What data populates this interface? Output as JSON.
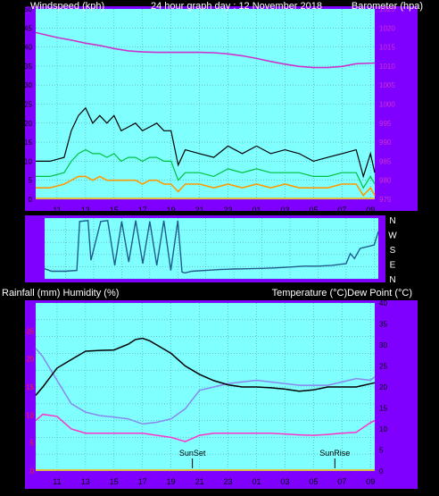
{
  "colors": {
    "plot_bg": "#80FFFF",
    "panel_bg": "#8000FF",
    "page_bg": "#000000",
    "header_text": "#FFFFFF",
    "label_dark": "#000000",
    "grid": "#5A9FA8",
    "wind_gust": "#000000",
    "wind_avg": "#00C040",
    "wind_speed": "#FF9900",
    "barometer": "#CC33CC",
    "direction": "#1F5C8C",
    "temperature": "#000000",
    "dew_point": "#FF33CC",
    "humidity": "#8888EE",
    "rain_axis": "#FF2020",
    "baseline": "#FFB000"
  },
  "chart_data": [
    {
      "id": "wind",
      "type": "line",
      "title": "24 hour graph day : 12 November 2018",
      "ylabel_left": "Windspeed (kph)",
      "ylabel_right": "Barometer (hpa)",
      "x_ticks": [
        "11",
        "13",
        "15",
        "17",
        "19",
        "21",
        "23",
        "01",
        "03",
        "05",
        "07",
        "09"
      ],
      "left_ticks": [
        "50",
        "45",
        "40",
        "35",
        "30",
        "25",
        "20",
        "15",
        "10",
        "5",
        "0"
      ],
      "right_ticks": [
        "1025",
        "1020",
        "1015",
        "1010",
        "1005",
        "1000",
        "995",
        "990",
        "985",
        "980",
        "975"
      ],
      "ylim_left": [
        0,
        50
      ],
      "ylim_right": [
        975,
        1025
      ],
      "x_range_hours": [
        9.5,
        33.3
      ],
      "series": [
        {
          "role": "barometer",
          "axis": "right",
          "x": [
            9.5,
            11,
            12,
            13,
            14,
            15,
            16,
            17,
            18,
            19,
            20,
            21,
            22,
            23,
            24,
            25,
            26,
            27,
            28,
            29,
            30,
            31,
            32,
            33.3
          ],
          "values": [
            1018.8,
            1017.5,
            1016.8,
            1016,
            1015.4,
            1014.6,
            1014,
            1013.7,
            1013.6,
            1013.6,
            1013.6,
            1013.6,
            1013.5,
            1013.2,
            1012.7,
            1012,
            1011.2,
            1010.5,
            1009.9,
            1009.6,
            1009.6,
            1009.9,
            1010.6,
            1010.8
          ]
        },
        {
          "role": "gust",
          "axis": "left",
          "x": [
            9.5,
            10.5,
            11.5,
            12,
            12.5,
            13,
            13.5,
            14,
            14.5,
            15,
            15.5,
            16,
            16.5,
            17,
            17.5,
            18,
            18.5,
            19,
            19.5,
            20,
            21,
            22,
            23,
            24,
            25,
            26,
            27,
            28,
            29,
            30,
            31,
            32,
            32.5,
            33,
            33.3
          ],
          "values": [
            10,
            10,
            11,
            18,
            22,
            24,
            20,
            22,
            20,
            22,
            18,
            19,
            20,
            18,
            19,
            20,
            18,
            18,
            9,
            13,
            12,
            11,
            14,
            12,
            14,
            12,
            13,
            12,
            10,
            11,
            12,
            13,
            6,
            12,
            7
          ]
        },
        {
          "role": "average",
          "axis": "left",
          "x": [
            9.5,
            10.5,
            11.5,
            12,
            12.5,
            13,
            13.5,
            14,
            14.5,
            15,
            15.5,
            16,
            16.5,
            17,
            17.5,
            18,
            18.5,
            19,
            19.5,
            20,
            21,
            22,
            23,
            24,
            25,
            26,
            27,
            28,
            29,
            30,
            31,
            32,
            32.5,
            33,
            33.3
          ],
          "values": [
            6,
            6,
            7,
            10,
            12,
            13,
            12,
            12,
            11,
            12,
            10,
            11,
            11,
            10,
            11,
            11,
            10,
            10,
            5,
            7,
            7,
            6,
            8,
            7,
            8,
            7,
            7,
            7,
            6,
            6,
            7,
            7,
            3,
            6,
            4
          ]
        },
        {
          "role": "speed",
          "axis": "left",
          "x": [
            9.5,
            10.5,
            11.5,
            12,
            12.5,
            13,
            13.5,
            14,
            14.5,
            15,
            15.5,
            16,
            16.5,
            17,
            17.5,
            18,
            18.5,
            19,
            19.5,
            20,
            21,
            22,
            23,
            24,
            25,
            26,
            27,
            28,
            29,
            30,
            31,
            32,
            32.5,
            33,
            33.3
          ],
          "values": [
            3,
            3,
            4,
            5,
            6,
            6,
            5,
            6,
            5,
            5,
            5,
            5,
            5,
            4,
            5,
            5,
            4,
            4,
            2,
            4,
            4,
            3,
            4,
            3,
            4,
            3,
            4,
            3,
            3,
            3,
            4,
            4,
            1,
            3,
            1
          ]
        }
      ]
    },
    {
      "id": "direction",
      "type": "line",
      "right_labels": [
        "N",
        "W",
        "S",
        "E",
        "N"
      ],
      "ylim": [
        0,
        360
      ],
      "x_range_hours": [
        9.5,
        33.3
      ],
      "series": [
        {
          "role": "direction",
          "x": [
            9.5,
            10,
            11,
            11.8,
            12,
            12.6,
            12.8,
            13.5,
            14,
            14.5,
            15,
            15.5,
            16,
            16.5,
            17,
            17.5,
            18,
            18.5,
            19,
            19.3,
            19.5,
            20,
            21,
            22,
            23,
            24,
            25,
            26,
            27,
            28,
            29,
            30,
            31,
            31.3,
            31.6,
            32,
            32.5,
            33,
            33.3
          ],
          "values": [
            60,
            45,
            45,
            50,
            340,
            345,
            110,
            340,
            345,
            80,
            340,
            100,
            345,
            90,
            340,
            80,
            345,
            50,
            345,
            40,
            35,
            45,
            50,
            55,
            58,
            60,
            62,
            65,
            70,
            75,
            75,
            80,
            90,
            150,
            120,
            180,
            190,
            200,
            280
          ]
        }
      ]
    },
    {
      "id": "temperature",
      "type": "line",
      "ylabel_left": "Rainfall (mm)  Humidity (%)",
      "ylabel_right": "Temperature (°C)Dew Point (°C)",
      "x_ticks": [
        "11",
        "13",
        "15",
        "17",
        "19",
        "21",
        "23",
        "01",
        "03",
        "05",
        "07",
        "09"
      ],
      "humidity_ticks": [
        "100",
        "90",
        "80",
        "70",
        "60",
        "50",
        "40",
        "30",
        "20",
        "10",
        "0"
      ],
      "rain_ticks": [
        "25",
        "20",
        "15",
        "10",
        "5",
        "0"
      ],
      "temp_ticks": [
        "40",
        "35",
        "30",
        "25",
        "20",
        "15",
        "10",
        "5",
        "0"
      ],
      "ylim_humidity": [
        0,
        100
      ],
      "ylim_rain": [
        0,
        30
      ],
      "ylim_temp": [
        0,
        40
      ],
      "x_range_hours": [
        9.5,
        33.3
      ],
      "annotations": [
        {
          "label": "SunSet",
          "x": 20.5
        },
        {
          "label": "SunRise",
          "x": 30.5
        }
      ],
      "series": [
        {
          "role": "temperature",
          "axis": "temp",
          "x": [
            9.5,
            10,
            11,
            12,
            13,
            14,
            15,
            16,
            16.5,
            17,
            17.5,
            18,
            19,
            20,
            21,
            22,
            23,
            24,
            25,
            26,
            27,
            28,
            29,
            30,
            31,
            32,
            33.3
          ],
          "values": [
            18,
            20,
            24.5,
            26.5,
            28.5,
            28.7,
            28.8,
            30.2,
            31.3,
            31.6,
            31,
            30,
            28,
            25,
            23,
            21.5,
            20.5,
            20,
            20,
            19.8,
            19.5,
            19,
            19.3,
            20,
            20,
            20,
            21
          ]
        },
        {
          "role": "dew_point",
          "axis": "temp",
          "x": [
            9.5,
            10,
            11,
            12,
            13,
            14,
            15,
            16,
            17,
            18,
            19,
            20,
            21,
            22,
            23,
            24,
            25,
            26,
            27,
            28,
            29,
            30,
            31,
            32,
            33,
            33.3
          ],
          "values": [
            12,
            13.5,
            13,
            10,
            9,
            9,
            9,
            9,
            9,
            8.5,
            8,
            7,
            8.5,
            9,
            9,
            9,
            9,
            9,
            8.8,
            8.6,
            8.5,
            8.7,
            9,
            9.2,
            11.5,
            12
          ]
        },
        {
          "role": "humidity",
          "axis": "humidity",
          "x": [
            9.5,
            10,
            11,
            12,
            13,
            14,
            15,
            16,
            17,
            18,
            19,
            20,
            21,
            22,
            23,
            24,
            25,
            26,
            27,
            28,
            29,
            30,
            31,
            32,
            33,
            33.3
          ],
          "values": [
            73,
            68,
            54,
            40,
            35,
            33,
            32,
            31,
            28,
            29,
            31,
            37,
            48,
            50,
            52,
            53,
            54,
            53,
            52,
            51,
            51,
            51,
            53,
            55,
            54,
            56
          ]
        }
      ]
    }
  ]
}
